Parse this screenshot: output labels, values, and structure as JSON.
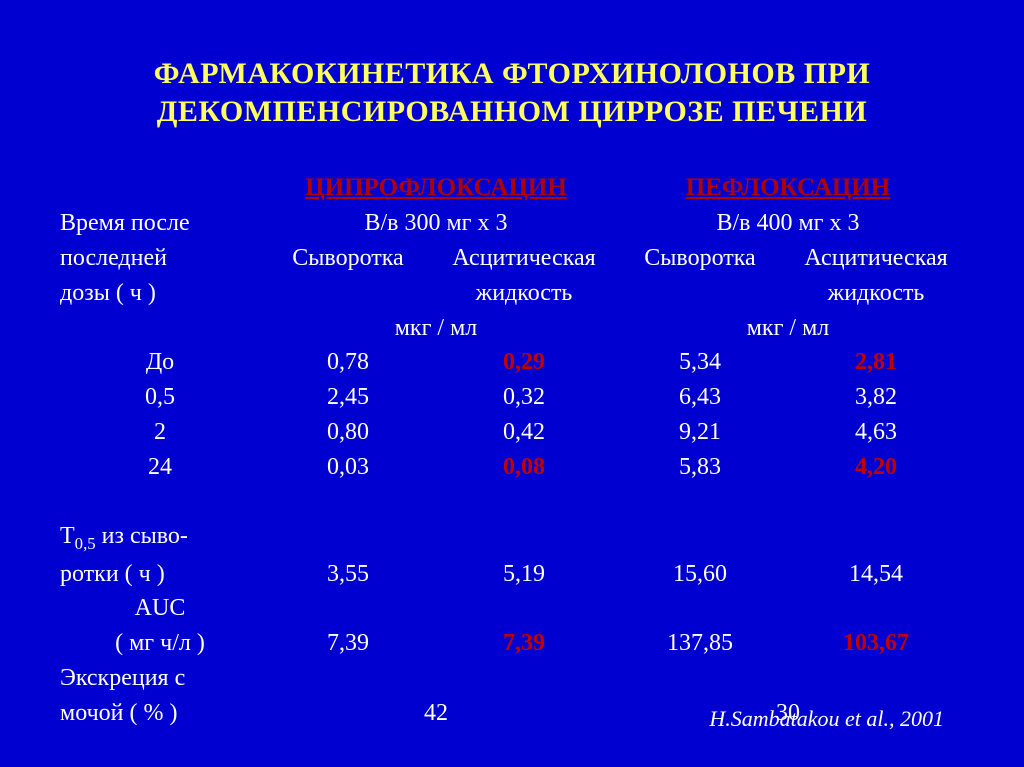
{
  "title_line1": "ФАРМАКОКИНЕТИКА ФТОРХИНОЛОНОВ ПРИ",
  "title_line2": "ДЕКОМПЕНСИРОВАННОМ ЦИРРОЗЕ ПЕЧЕНИ",
  "colors": {
    "background": "#0000d0",
    "title": "#ffff5f",
    "text": "#ffffff",
    "accent_red": "#c00000",
    "drug_header_red": "#b00000"
  },
  "row_label_header": "Время после\nпоследней\nдозы ( ч )",
  "drugs": [
    {
      "name": "ЦИПРОФЛОКСАЦИН",
      "dose": "В/в  300 мг х 3",
      "sub1": "Сыворотка",
      "sub2": "Асцитическая\nжидкость",
      "units": "мкг / мл"
    },
    {
      "name": "ПЕФЛОКСАЦИН",
      "dose": "В/в  400 мг х 3",
      "sub1": "Сыворотка",
      "sub2": "Асцитическая\nжидкость",
      "units": "мкг / мл"
    }
  ],
  "rows": [
    {
      "label": "До",
      "c1": "0,78",
      "c2": "0,29",
      "c2_red": true,
      "c3": "5,34",
      "c4": "2,81",
      "c4_red": true
    },
    {
      "label": "0,5",
      "c1": "2,45",
      "c2": "0,32",
      "c2_red": false,
      "c3": "6,43",
      "c4": "3,82",
      "c4_red": false
    },
    {
      "label": "2",
      "c1": "0,80",
      "c2": "0,42",
      "c2_red": false,
      "c3": "9,21",
      "c4": "4,63",
      "c4_red": false
    },
    {
      "label": "24",
      "c1": "0,03",
      "c2": "0,08",
      "c2_red": true,
      "c3": "5,83",
      "c4": "4,20",
      "c4_red": true
    }
  ],
  "t05_label_l1": "Т",
  "t05_label_sub": "0,5",
  "t05_label_l1b": " из сыво-",
  "t05_label_l2": "ротки ( ч )",
  "t05": {
    "c1": "3,55",
    "c2": "5,19",
    "c3": "15,60",
    "c4": "14,54"
  },
  "auc_label_l1": "AUC",
  "auc_label_l2": "( мг ч/л )",
  "auc": {
    "c1": "7,39",
    "c2": "7,39",
    "c2_red": true,
    "c3": "137,85",
    "c4": "103,67",
    "c4_red": true
  },
  "excr_label_l1": "Экскреция с",
  "excr_label_l2": "мочой ( % )",
  "excr": {
    "m1": "42",
    "m2": "30"
  },
  "citation": "H.Sambatakou et al., 2001"
}
